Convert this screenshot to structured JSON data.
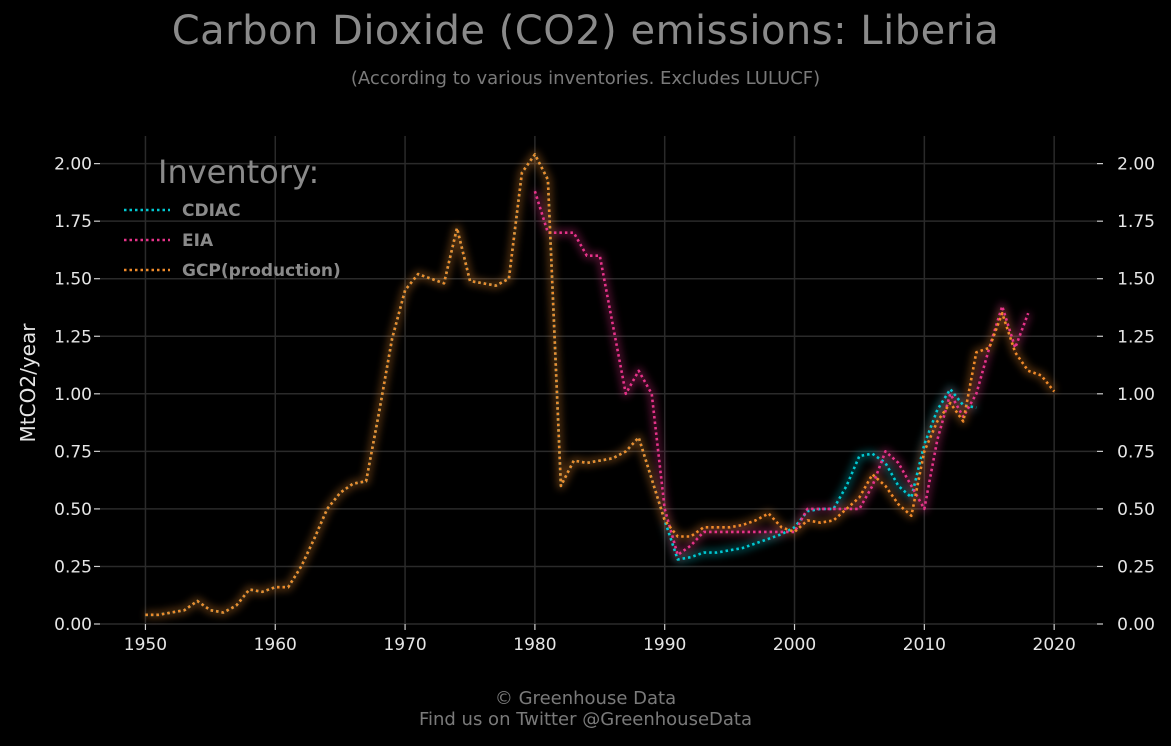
{
  "header": {
    "title": "Carbon Dioxide (CO2) emissions: Liberia",
    "subtitle": "(According to various inventories. Excludes LULUCF)"
  },
  "footer": {
    "line1": "© Greenhouse Data",
    "line2": "Find us on Twitter @GreenhouseData"
  },
  "chart_data": {
    "type": "line",
    "title": "Carbon Dioxide (CO2) emissions: Liberia",
    "subtitle": "(According to various inventories. Excludes LULUCF)",
    "xlabel": "",
    "ylabel": "MtCO2/year",
    "xlim": [
      1946.5,
      2023.3
    ],
    "ylim": [
      0,
      2.12
    ],
    "x_ticks": [
      1950,
      1960,
      1970,
      1980,
      1990,
      2000,
      2010,
      2020
    ],
    "y_ticks": [
      0.0,
      0.25,
      0.5,
      0.75,
      1.0,
      1.25,
      1.5,
      1.75,
      2.0
    ],
    "x_tick_labels": [
      "1950",
      "1960",
      "1970",
      "1980",
      "1990",
      "2000",
      "2010",
      "2020"
    ],
    "y_tick_labels": [
      "0.00",
      "0.25",
      "0.50",
      "0.75",
      "1.00",
      "1.25",
      "1.50",
      "1.75",
      "2.00"
    ],
    "grid": true,
    "legend_title": "Inventory:",
    "legend_position": "top-left",
    "background": "#000000",
    "grid_color": "#2a2a2a",
    "series": [
      {
        "name": "CDIAC",
        "color": "#00c8d2",
        "x": [
          1950,
          1951,
          1952,
          1953,
          1954,
          1955,
          1956,
          1957,
          1958,
          1959,
          1960,
          1961,
          1962,
          1963,
          1964,
          1965,
          1966,
          1967,
          1968,
          1969,
          1970,
          1971,
          1972,
          1973,
          1974,
          1975,
          1976,
          1977,
          1978,
          1979,
          1980,
          1981,
          1982,
          1983,
          1984,
          1985,
          1986,
          1987,
          1988,
          1989,
          1990,
          1991,
          1992,
          1993,
          1994,
          1995,
          1996,
          1997,
          1998,
          1999,
          2000,
          2001,
          2002,
          2003,
          2004,
          2005,
          2006,
          2007,
          2008,
          2009,
          2010,
          2011,
          2012,
          2013,
          2014
        ],
        "y": [
          0.04,
          0.04,
          0.05,
          0.06,
          0.1,
          0.06,
          0.05,
          0.08,
          0.15,
          0.14,
          0.16,
          0.16,
          0.25,
          0.37,
          0.5,
          0.57,
          0.61,
          0.62,
          0.92,
          1.24,
          1.45,
          1.52,
          1.5,
          1.48,
          1.72,
          1.49,
          1.48,
          1.47,
          1.5,
          1.96,
          2.04,
          1.93,
          0.6,
          0.71,
          0.7,
          0.71,
          0.72,
          0.75,
          0.81,
          0.63,
          0.45,
          0.28,
          0.29,
          0.31,
          0.31,
          0.32,
          0.33,
          0.35,
          0.37,
          0.39,
          0.42,
          0.49,
          0.5,
          0.5,
          0.6,
          0.73,
          0.74,
          0.7,
          0.6,
          0.55,
          0.78,
          0.93,
          1.02,
          0.95,
          0.94
        ]
      },
      {
        "name": "EIA",
        "color": "#e6338a",
        "x": [
          1980,
          1981,
          1982,
          1983,
          1984,
          1985,
          1986,
          1987,
          1988,
          1989,
          1990,
          1991,
          1992,
          1993,
          1994,
          1995,
          1996,
          1997,
          1998,
          1999,
          2000,
          2001,
          2002,
          2003,
          2004,
          2005,
          2006,
          2007,
          2008,
          2009,
          2010,
          2011,
          2012,
          2013,
          2014,
          2015,
          2016,
          2017,
          2018
        ],
        "y": [
          1.88,
          1.7,
          1.7,
          1.7,
          1.6,
          1.6,
          1.3,
          1.0,
          1.1,
          1.0,
          0.5,
          0.3,
          0.34,
          0.4,
          0.4,
          0.4,
          0.4,
          0.4,
          0.4,
          0.4,
          0.4,
          0.5,
          0.5,
          0.5,
          0.5,
          0.5,
          0.6,
          0.75,
          0.7,
          0.6,
          0.5,
          0.8,
          1.0,
          0.9,
          1.0,
          1.2,
          1.38,
          1.2,
          1.35
        ]
      },
      {
        "name": "GCP(production)",
        "color": "#f08a2a",
        "x": [
          1950,
          1951,
          1952,
          1953,
          1954,
          1955,
          1956,
          1957,
          1958,
          1959,
          1960,
          1961,
          1962,
          1963,
          1964,
          1965,
          1966,
          1967,
          1968,
          1969,
          1970,
          1971,
          1972,
          1973,
          1974,
          1975,
          1976,
          1977,
          1978,
          1979,
          1980,
          1981,
          1982,
          1983,
          1984,
          1985,
          1986,
          1987,
          1988,
          1989,
          1990,
          1991,
          1992,
          1993,
          1994,
          1995,
          1996,
          1997,
          1998,
          1999,
          2000,
          2001,
          2002,
          2003,
          2004,
          2005,
          2006,
          2007,
          2008,
          2009,
          2010,
          2011,
          2012,
          2013,
          2014,
          2015,
          2016,
          2017,
          2018,
          2019,
          2020
        ],
        "y": [
          0.04,
          0.04,
          0.05,
          0.06,
          0.1,
          0.06,
          0.05,
          0.08,
          0.15,
          0.14,
          0.16,
          0.16,
          0.25,
          0.37,
          0.5,
          0.57,
          0.61,
          0.62,
          0.92,
          1.24,
          1.45,
          1.52,
          1.5,
          1.48,
          1.72,
          1.49,
          1.48,
          1.47,
          1.5,
          1.96,
          2.04,
          1.93,
          0.6,
          0.71,
          0.7,
          0.71,
          0.72,
          0.75,
          0.81,
          0.63,
          0.45,
          0.38,
          0.38,
          0.42,
          0.42,
          0.42,
          0.43,
          0.45,
          0.48,
          0.42,
          0.4,
          0.45,
          0.44,
          0.45,
          0.5,
          0.55,
          0.65,
          0.6,
          0.52,
          0.47,
          0.75,
          0.88,
          0.96,
          0.88,
          1.18,
          1.2,
          1.35,
          1.18,
          1.1,
          1.08,
          1.01
        ]
      }
    ]
  }
}
